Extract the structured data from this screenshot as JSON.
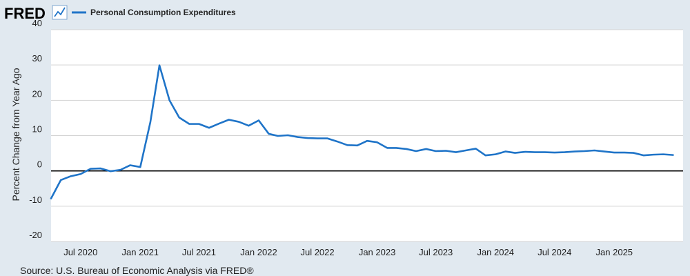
{
  "brand": {
    "logo_text": "FRED",
    "logo_icon": "line-chart-icon"
  },
  "colors": {
    "background": "#e1e9f0",
    "plot_background": "#ffffff",
    "series": "#1f74c8",
    "grid": "#d3d3d3",
    "zero_line": "#000000"
  },
  "source": "Source: U.S. Bureau of Economic Analysis via FRED®",
  "chart_data": {
    "type": "line",
    "ylabel": "Percent Change from Year Ago",
    "xlabel": "",
    "ylim": [
      -20,
      40
    ],
    "yticks": [
      -20,
      -10,
      0,
      10,
      20,
      30,
      40
    ],
    "xlim": [
      "2020-04-01",
      "2025-08-01"
    ],
    "xticks": [
      {
        "date": "2020-07-01",
        "label": "Jul 2020"
      },
      {
        "date": "2021-01-01",
        "label": "Jan 2021"
      },
      {
        "date": "2021-07-01",
        "label": "Jul 2021"
      },
      {
        "date": "2022-01-01",
        "label": "Jan 2022"
      },
      {
        "date": "2022-07-01",
        "label": "Jul 2022"
      },
      {
        "date": "2023-01-01",
        "label": "Jan 2023"
      },
      {
        "date": "2023-07-01",
        "label": "Jul 2023"
      },
      {
        "date": "2024-01-01",
        "label": "Jan 2024"
      },
      {
        "date": "2024-07-01",
        "label": "Jul 2024"
      },
      {
        "date": "2025-01-01",
        "label": "Jan 2025"
      }
    ],
    "grid": true,
    "legend": "top-left",
    "series": [
      {
        "name": "Personal Consumption Expenditures",
        "x": [
          "2020-04-01",
          "2020-05-01",
          "2020-06-01",
          "2020-07-01",
          "2020-08-01",
          "2020-09-01",
          "2020-10-01",
          "2020-11-01",
          "2020-12-01",
          "2021-01-01",
          "2021-02-01",
          "2021-03-01",
          "2021-04-01",
          "2021-05-01",
          "2021-06-01",
          "2021-07-01",
          "2021-08-01",
          "2021-09-01",
          "2021-10-01",
          "2021-11-01",
          "2021-12-01",
          "2022-01-01",
          "2022-02-01",
          "2022-03-01",
          "2022-04-01",
          "2022-05-01",
          "2022-06-01",
          "2022-07-01",
          "2022-08-01",
          "2022-09-01",
          "2022-10-01",
          "2022-11-01",
          "2022-12-01",
          "2023-01-01",
          "2023-02-01",
          "2023-03-01",
          "2023-04-01",
          "2023-05-01",
          "2023-06-01",
          "2023-07-01",
          "2023-08-01",
          "2023-09-01",
          "2023-10-01",
          "2023-11-01",
          "2023-12-01",
          "2024-01-01",
          "2024-02-01",
          "2024-03-01",
          "2024-04-01",
          "2024-05-01",
          "2024-06-01",
          "2024-07-01",
          "2024-08-01",
          "2024-09-01",
          "2024-10-01",
          "2024-11-01",
          "2024-12-01",
          "2025-01-01",
          "2025-02-01",
          "2025-03-01",
          "2025-04-01",
          "2025-05-01",
          "2025-06-01",
          "2025-07-01"
        ],
        "values": [
          -7.8,
          -2.6,
          -1.5,
          -0.9,
          0.6,
          0.7,
          -0.1,
          0.3,
          1.6,
          1.1,
          13.8,
          29.9,
          20.0,
          15.1,
          13.3,
          13.3,
          12.2,
          13.4,
          14.5,
          13.9,
          12.8,
          14.3,
          10.5,
          9.9,
          10.1,
          9.6,
          9.3,
          9.2,
          9.2,
          8.3,
          7.3,
          7.2,
          8.5,
          8.1,
          6.5,
          6.5,
          6.2,
          5.6,
          6.2,
          5.6,
          5.7,
          5.3,
          5.8,
          6.3,
          4.4,
          4.7,
          5.5,
          5.1,
          5.4,
          5.3,
          5.3,
          5.2,
          5.3,
          5.5,
          5.6,
          5.8,
          5.5,
          5.2,
          5.2,
          5.1,
          4.4,
          4.6,
          4.7,
          4.5
        ]
      }
    ]
  }
}
